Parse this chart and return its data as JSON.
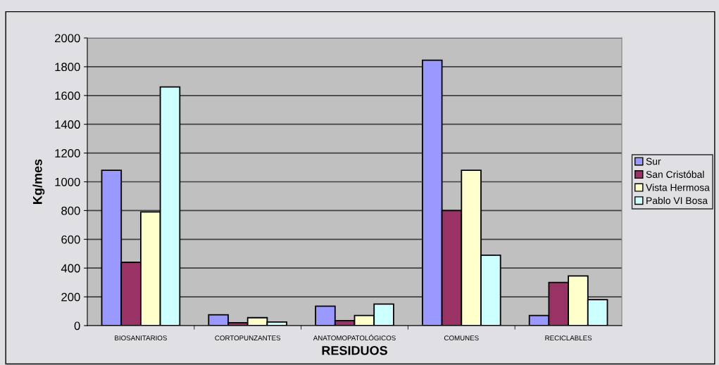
{
  "chart_data": {
    "type": "bar",
    "xlabel": "RESIDUOS",
    "ylabel": "Kg/mes",
    "categories": [
      "BIOSANITARIOS",
      "CORTOPUNZANTES",
      "ANATOMOPATOLÓGICOS",
      "COMUNES",
      "RECICLABLES"
    ],
    "series": [
      {
        "name": "Sur",
        "color": "#9999ff",
        "values": [
          1080,
          75,
          135,
          1845,
          70
        ]
      },
      {
        "name": "San Cristóbal",
        "color": "#993366",
        "values": [
          440,
          20,
          35,
          800,
          300
        ]
      },
      {
        "name": "Vista Hermosa",
        "color": "#ffffcc",
        "values": [
          790,
          55,
          70,
          1080,
          345
        ]
      },
      {
        "name": "Pablo VI Bosa",
        "color": "#ccffff",
        "values": [
          1660,
          25,
          150,
          490,
          180
        ]
      }
    ],
    "ylim": [
      0,
      2000
    ],
    "yticks": [
      0,
      200,
      400,
      600,
      800,
      1000,
      1200,
      1400,
      1600,
      1800,
      2000
    ],
    "grid": "y",
    "legend": "right"
  }
}
